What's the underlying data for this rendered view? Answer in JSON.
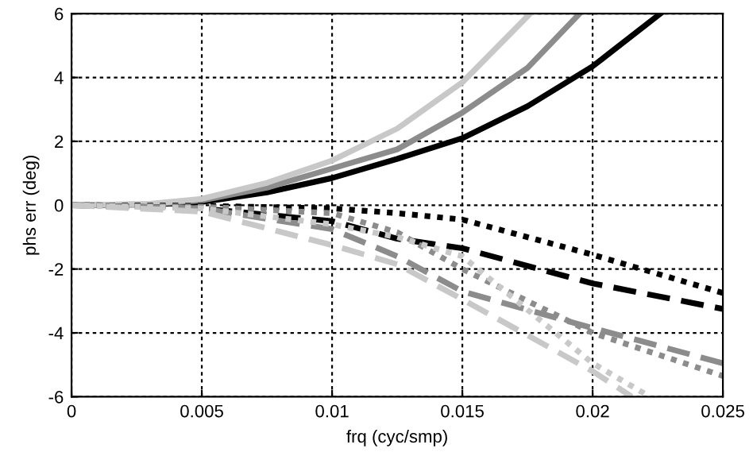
{
  "chart_data": {
    "type": "line",
    "xlabel": "frq (cyc/smp)",
    "ylabel": "phs err (deg)",
    "xlim": [
      0,
      0.025
    ],
    "ylim": [
      -6,
      6
    ],
    "xticks": [
      0,
      0.005,
      0.01,
      0.015,
      0.02,
      0.025
    ],
    "yticks": [
      -6,
      -4,
      -2,
      0,
      2,
      4,
      6
    ],
    "grid": true,
    "legend": false,
    "series": [
      {
        "color": "#000000",
        "line_style": "solid",
        "x": [
          0,
          0.003,
          0.005,
          0.0075,
          0.01,
          0.0125,
          0.015,
          0.0175,
          0.02,
          0.0226
        ],
        "values": [
          0,
          0.02,
          0.1,
          0.4,
          0.85,
          1.45,
          2.1,
          3.1,
          4.35,
          6
        ]
      },
      {
        "color": "#8c8c8c",
        "line_style": "solid",
        "x": [
          0,
          0.003,
          0.005,
          0.0075,
          0.01,
          0.0125,
          0.015,
          0.0175,
          0.0195
        ],
        "values": [
          0,
          0.03,
          0.15,
          0.55,
          1.15,
          1.75,
          2.9,
          4.3,
          6
        ]
      },
      {
        "color": "#c8c8c8",
        "line_style": "solid",
        "x": [
          0,
          0.003,
          0.005,
          0.0075,
          0.01,
          0.0125,
          0.015,
          0.0176
        ],
        "values": [
          0,
          0.04,
          0.2,
          0.7,
          1.4,
          2.4,
          3.85,
          6
        ]
      },
      {
        "color": "#000000",
        "line_style": "dotted",
        "x": [
          0,
          0.005,
          0.01,
          0.0125,
          0.015,
          0.02,
          0.025
        ],
        "values": [
          0,
          -0.02,
          -0.1,
          -0.25,
          -0.45,
          -1.55,
          -2.75
        ]
      },
      {
        "color": "#000000",
        "line_style": "dashed",
        "x": [
          0,
          0.005,
          0.01,
          0.0125,
          0.015,
          0.02,
          0.025
        ],
        "values": [
          0,
          -0.1,
          -0.5,
          -1.05,
          -1.35,
          -2.45,
          -3.25
        ]
      },
      {
        "color": "#8c8c8c",
        "line_style": "dotted",
        "x": [
          0,
          0.005,
          0.01,
          0.0125,
          0.015,
          0.02,
          0.025
        ],
        "values": [
          0,
          -0.05,
          -0.25,
          -0.85,
          -2.0,
          -4.0,
          -5.35
        ]
      },
      {
        "color": "#8c8c8c",
        "line_style": "dashed",
        "x": [
          0,
          0.005,
          0.01,
          0.0125,
          0.015,
          0.02,
          0.025
        ],
        "values": [
          0,
          -0.1,
          -0.75,
          -1.6,
          -2.7,
          -3.85,
          -4.95
        ]
      },
      {
        "color": "#c8c8c8",
        "line_style": "dotted",
        "x": [
          0,
          0.005,
          0.01,
          0.0125,
          0.015,
          0.02,
          0.0222
        ],
        "values": [
          0,
          -0.1,
          -0.6,
          -1.0,
          -1.6,
          -4.95,
          -6
        ]
      },
      {
        "color": "#c8c8c8",
        "line_style": "dashed",
        "x": [
          0,
          0.005,
          0.01,
          0.0125,
          0.015,
          0.02,
          0.0215
        ],
        "values": [
          0,
          -0.2,
          -1.25,
          -1.85,
          -2.95,
          -5.2,
          -6
        ]
      }
    ]
  }
}
